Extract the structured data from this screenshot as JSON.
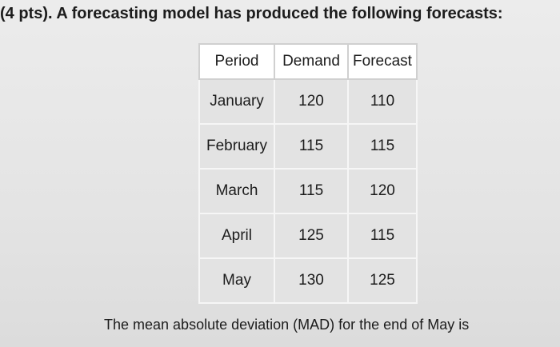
{
  "header": {
    "title": "(4 pts). A forecasting model has produced the following forecasts:"
  },
  "table": {
    "columns": [
      "Period",
      "Demand",
      "Forecast"
    ],
    "rows": [
      [
        "January",
        120,
        110
      ],
      [
        "February",
        115,
        115
      ],
      [
        "March",
        115,
        120
      ],
      [
        "April",
        125,
        115
      ],
      [
        "May",
        130,
        125
      ]
    ]
  },
  "footer": {
    "text": "The mean absolute deviation (MAD) for the end of May is"
  }
}
